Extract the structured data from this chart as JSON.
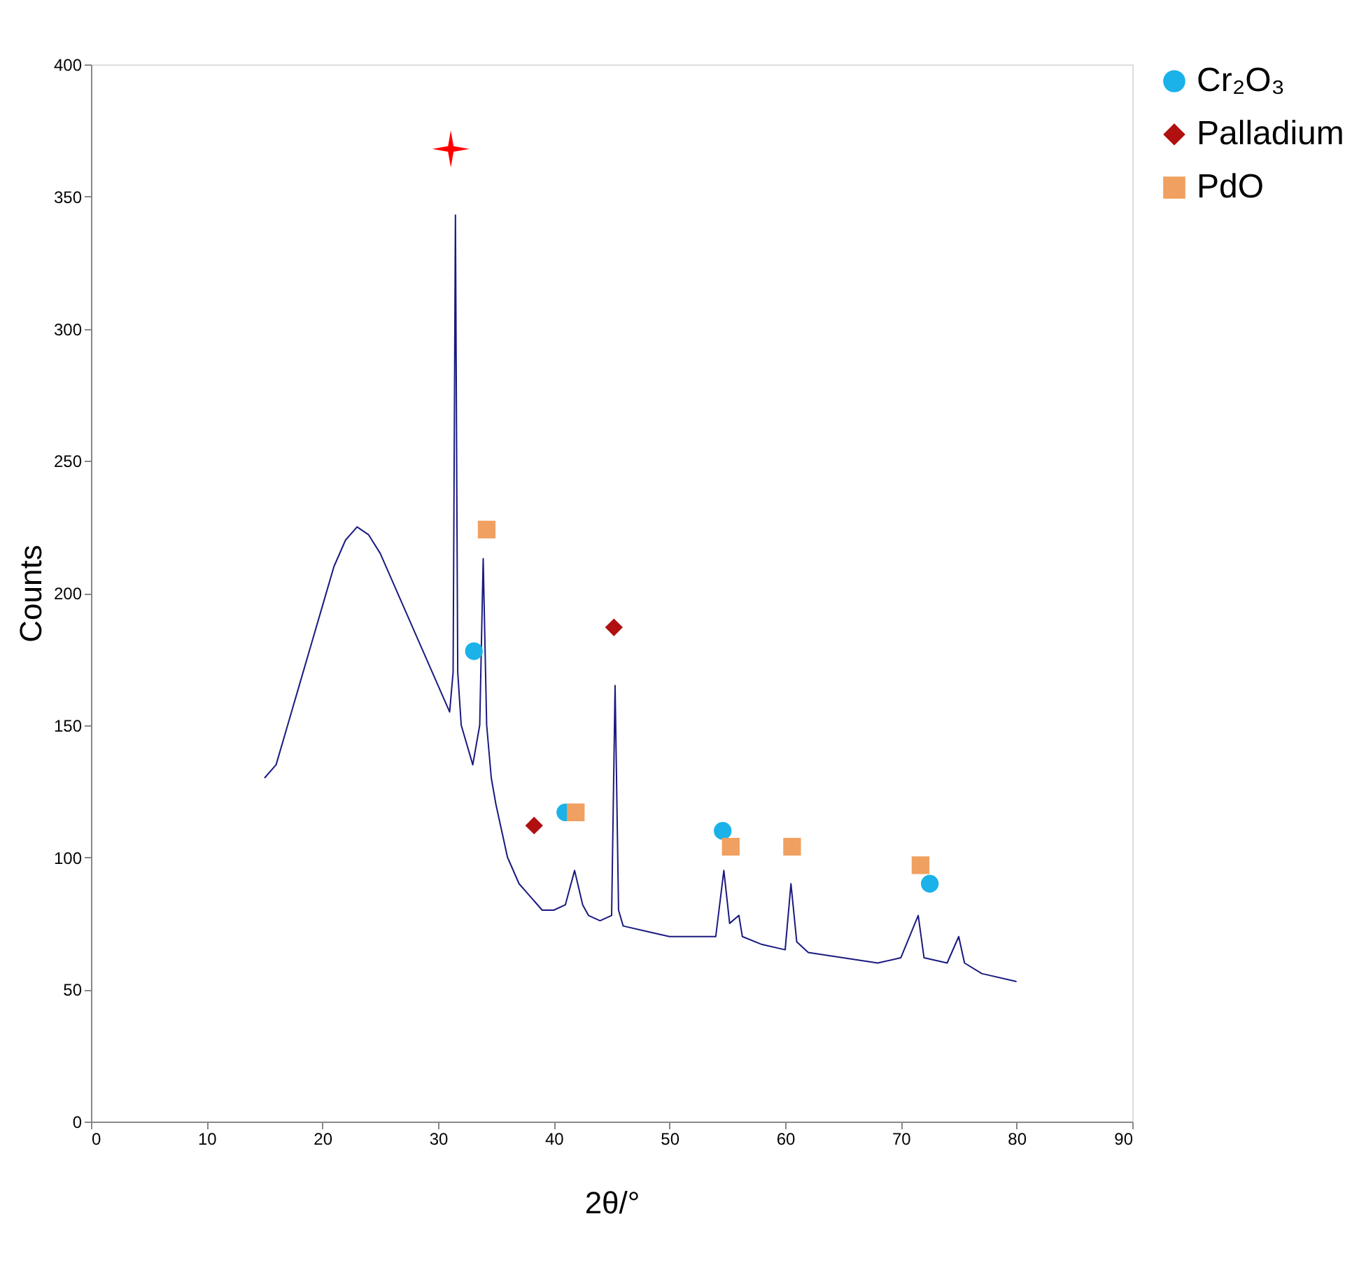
{
  "chart_data": {
    "type": "line",
    "xlabel": "2θ/°",
    "ylabel": "Counts",
    "xlim": [
      0,
      90
    ],
    "xticks": [
      0,
      10,
      20,
      30,
      40,
      50,
      60,
      70,
      80,
      90
    ],
    "ylim": [
      0,
      400
    ],
    "yticks": [
      0,
      50,
      100,
      150,
      200,
      250,
      300,
      350,
      400
    ],
    "grid": false,
    "legend": "right",
    "series": [
      {
        "color": "#1a1a80",
        "x": [
          15,
          16,
          17,
          18,
          19,
          20,
          21,
          22,
          23,
          24,
          25,
          26,
          27,
          28,
          29,
          30,
          31,
          31.3,
          31.5,
          31.7,
          32,
          33,
          33.6,
          33.9,
          34.2,
          34.6,
          35,
          36,
          37,
          38,
          39,
          40,
          41,
          41.8,
          42.5,
          43,
          44,
          45,
          45.3,
          45.6,
          46,
          48,
          50,
          52,
          54,
          54.7,
          55.2,
          56,
          56.3,
          58,
          60,
          60.5,
          61,
          62,
          65,
          68,
          70,
          71.5,
          72,
          74,
          75,
          75.5,
          77,
          80
        ],
        "values": [
          130,
          135,
          150,
          165,
          180,
          195,
          210,
          220,
          225,
          222,
          215,
          205,
          195,
          185,
          175,
          165,
          155,
          170,
          343,
          170,
          150,
          135,
          150,
          213,
          150,
          130,
          120,
          100,
          90,
          85,
          80,
          80,
          82,
          95,
          82,
          78,
          76,
          78,
          165,
          80,
          74,
          72,
          70,
          70,
          70,
          95,
          75,
          78,
          70,
          67,
          65,
          90,
          68,
          64,
          62,
          60,
          62,
          78,
          62,
          60,
          70,
          60,
          56,
          53
        ]
      },
      {
        "type": "scatter",
        "name": "Cr₂O₃",
        "color": "#1ab2e8",
        "marker": "circle",
        "x": [
          33.1,
          41.0,
          54.6,
          72.5
        ],
        "values": [
          178,
          117,
          110,
          90
        ]
      },
      {
        "type": "scatter",
        "name": "Palladium",
        "color": "#b01010",
        "marker": "diamond",
        "x": [
          45.2,
          38.3
        ],
        "values": [
          187,
          112
        ]
      },
      {
        "type": "scatter",
        "name": "PdO",
        "color": "#f0a060",
        "marker": "square",
        "x": [
          34.2,
          41.9,
          55.3,
          60.6,
          71.7
        ],
        "values": [
          224,
          117,
          104,
          104,
          97
        ]
      },
      {
        "type": "scatter",
        "color": "#ff0000",
        "marker": "star",
        "x": [
          31.1
        ],
        "values": [
          368
        ]
      }
    ]
  }
}
